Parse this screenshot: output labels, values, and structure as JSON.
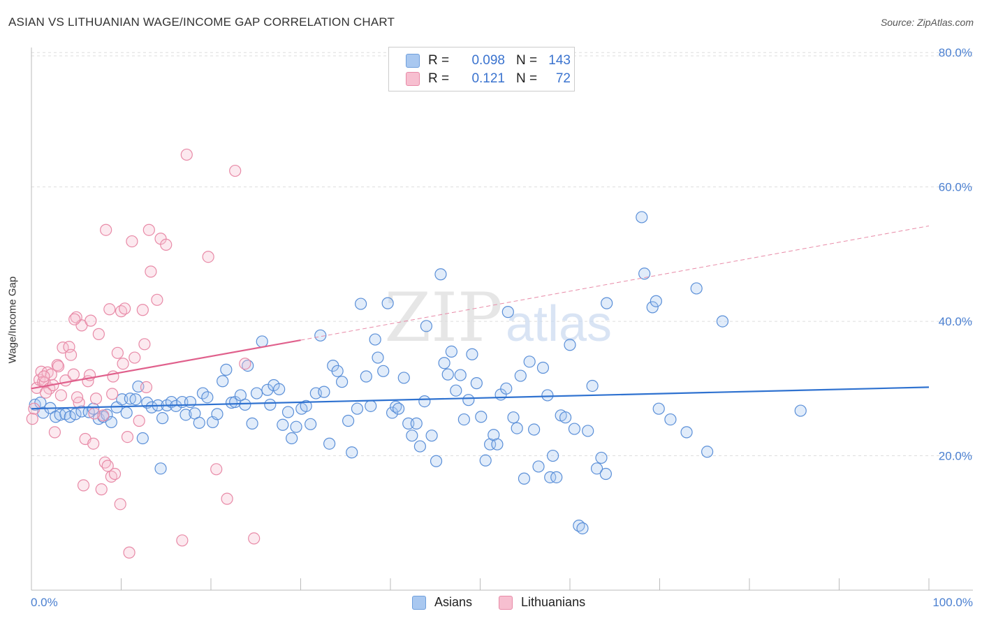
{
  "title": "ASIAN VS LITHUANIAN WAGE/INCOME GAP CORRELATION CHART",
  "source": "Source: ZipAtlas.com",
  "watermark": {
    "zip": "ZIP",
    "atlas": "atlas"
  },
  "legend": {
    "rows": [
      {
        "r_label": "R =",
        "r_value": "0.098",
        "n_label": "N =",
        "n_value": "143",
        "color": "#a9c8f0",
        "stroke": "#6f9fdc"
      },
      {
        "r_label": "R =",
        "r_value": "0.121",
        "n_label": "N =",
        "n_value": "72",
        "color": "#f7bfd0",
        "stroke": "#e88aa7"
      }
    ]
  },
  "bottom_legend": [
    {
      "label": "Asians",
      "color": "#a9c8f0",
      "stroke": "#6f9fdc"
    },
    {
      "label": "Lithuanians",
      "color": "#f7bfd0",
      "stroke": "#e88aa7"
    }
  ],
  "chart_data": {
    "type": "scatter",
    "title": "ASIAN VS LITHUANIAN WAGE/INCOME GAP CORRELATION CHART",
    "xlabel": "",
    "ylabel": "Wage/Income Gap",
    "xlim": [
      0,
      100
    ],
    "ylim": [
      0,
      80
    ],
    "x_tick_labels": [
      "0.0%",
      "100.0%"
    ],
    "y_ticks": [
      20,
      40,
      60,
      80
    ],
    "y_tick_labels": [
      "20.0%",
      "40.0%",
      "60.0%",
      "80.0%"
    ],
    "grid": true,
    "legend_position": "top-center",
    "series": [
      {
        "name": "Asians",
        "color": "#4a86d8",
        "trend": {
          "x": [
            0,
            100
          ],
          "y": [
            27.0,
            30.2
          ]
        },
        "points": [
          [
            0.4,
            27.6
          ],
          [
            1.0,
            27.9
          ],
          [
            1.3,
            26.4
          ],
          [
            2.1,
            27.1
          ],
          [
            2.7,
            25.8
          ],
          [
            3.2,
            26.1
          ],
          [
            3.8,
            26.2
          ],
          [
            4.3,
            25.8
          ],
          [
            4.9,
            26.2
          ],
          [
            5.6,
            26.6
          ],
          [
            6.4,
            26.5
          ],
          [
            6.9,
            27.0
          ],
          [
            7.5,
            25.5
          ],
          [
            8.0,
            25.8
          ],
          [
            8.4,
            26.1
          ],
          [
            8.9,
            25.0
          ],
          [
            9.5,
            27.2
          ],
          [
            10.1,
            28.4
          ],
          [
            10.6,
            26.4
          ],
          [
            11.0,
            28.5
          ],
          [
            11.6,
            28.4
          ],
          [
            11.9,
            30.3
          ],
          [
            12.4,
            22.6
          ],
          [
            12.9,
            27.9
          ],
          [
            13.4,
            27.2
          ],
          [
            14.1,
            27.5
          ],
          [
            14.6,
            25.6
          ],
          [
            15.1,
            27.5
          ],
          [
            14.4,
            18.1
          ],
          [
            15.6,
            28.0
          ],
          [
            16.1,
            27.4
          ],
          [
            16.8,
            28.0
          ],
          [
            17.2,
            26.1
          ],
          [
            17.7,
            28.0
          ],
          [
            18.2,
            26.3
          ],
          [
            18.7,
            24.9
          ],
          [
            19.1,
            29.3
          ],
          [
            19.6,
            28.7
          ],
          [
            20.2,
            25.0
          ],
          [
            20.7,
            26.2
          ],
          [
            21.3,
            31.1
          ],
          [
            21.7,
            32.8
          ],
          [
            22.3,
            27.9
          ],
          [
            22.7,
            28.0
          ],
          [
            23.3,
            29.0
          ],
          [
            23.8,
            27.6
          ],
          [
            24.1,
            33.4
          ],
          [
            24.6,
            24.8
          ],
          [
            25.1,
            29.3
          ],
          [
            25.7,
            37.0
          ],
          [
            26.3,
            29.8
          ],
          [
            26.6,
            27.6
          ],
          [
            27.0,
            30.5
          ],
          [
            27.6,
            29.9
          ],
          [
            28.0,
            24.6
          ],
          [
            28.6,
            26.5
          ],
          [
            29.0,
            22.6
          ],
          [
            29.5,
            24.3
          ],
          [
            30.1,
            27.0
          ],
          [
            30.6,
            27.4
          ],
          [
            31.1,
            24.7
          ],
          [
            31.7,
            29.3
          ],
          [
            32.2,
            37.9
          ],
          [
            32.6,
            29.5
          ],
          [
            33.2,
            21.8
          ],
          [
            33.6,
            33.4
          ],
          [
            34.1,
            32.6
          ],
          [
            34.6,
            31.0
          ],
          [
            35.3,
            25.2
          ],
          [
            35.7,
            20.5
          ],
          [
            36.3,
            27.0
          ],
          [
            36.7,
            42.6
          ],
          [
            37.3,
            31.8
          ],
          [
            37.8,
            27.4
          ],
          [
            38.3,
            37.3
          ],
          [
            38.6,
            34.6
          ],
          [
            39.2,
            32.6
          ],
          [
            39.7,
            42.7
          ],
          [
            40.2,
            26.4
          ],
          [
            40.6,
            27.3
          ],
          [
            40.9,
            27.0
          ],
          [
            41.5,
            31.6
          ],
          [
            42.0,
            24.8
          ],
          [
            42.4,
            23.0
          ],
          [
            42.9,
            24.8
          ],
          [
            43.3,
            21.4
          ],
          [
            43.8,
            28.1
          ],
          [
            44.0,
            39.3
          ],
          [
            44.6,
            23.0
          ],
          [
            45.1,
            19.2
          ],
          [
            45.6,
            47.0
          ],
          [
            46.0,
            33.8
          ],
          [
            46.4,
            32.1
          ],
          [
            46.8,
            35.5
          ],
          [
            47.3,
            29.7
          ],
          [
            47.8,
            32.0
          ],
          [
            48.2,
            25.4
          ],
          [
            48.7,
            28.3
          ],
          [
            49.1,
            35.1
          ],
          [
            49.6,
            30.8
          ],
          [
            50.1,
            25.8
          ],
          [
            50.6,
            19.3
          ],
          [
            51.1,
            21.7
          ],
          [
            51.5,
            23.1
          ],
          [
            51.9,
            21.7
          ],
          [
            52.3,
            29.1
          ],
          [
            52.9,
            30.0
          ],
          [
            53.1,
            41.4
          ],
          [
            53.7,
            25.7
          ],
          [
            54.1,
            24.1
          ],
          [
            54.5,
            31.9
          ],
          [
            54.9,
            16.6
          ],
          [
            55.5,
            34.0
          ],
          [
            56.0,
            23.9
          ],
          [
            56.5,
            18.4
          ],
          [
            57.0,
            33.1
          ],
          [
            57.5,
            29.0
          ],
          [
            57.8,
            16.8
          ],
          [
            58.1,
            20.0
          ],
          [
            58.5,
            16.8
          ],
          [
            59.0,
            26.0
          ],
          [
            59.5,
            25.7
          ],
          [
            60.0,
            36.5
          ],
          [
            60.5,
            24.0
          ],
          [
            61.0,
            9.6
          ],
          [
            61.4,
            9.2
          ],
          [
            62.0,
            23.7
          ],
          [
            62.5,
            30.4
          ],
          [
            63.0,
            18.1
          ],
          [
            63.5,
            19.7
          ],
          [
            64.0,
            17.3
          ],
          [
            64.1,
            42.7
          ],
          [
            68.0,
            55.5
          ],
          [
            68.3,
            47.1
          ],
          [
            69.2,
            42.1
          ],
          [
            69.6,
            43.0
          ],
          [
            69.9,
            27.0
          ],
          [
            71.2,
            25.4
          ],
          [
            73.0,
            23.5
          ],
          [
            74.1,
            44.9
          ],
          [
            75.3,
            20.6
          ],
          [
            77.0,
            40.0
          ],
          [
            85.7,
            26.7
          ]
        ]
      },
      {
        "name": "Lithuanians",
        "color": "#e27099",
        "trend": {
          "x": [
            0,
            30
          ],
          "y": [
            30.0,
            37.2
          ]
        },
        "trend_extension": {
          "x": [
            30,
            100
          ],
          "y": [
            37.2,
            54.2
          ]
        },
        "points": [
          [
            0.3,
            27.0
          ],
          [
            0.6,
            30.1
          ],
          [
            0.9,
            31.3
          ],
          [
            1.1,
            32.5
          ],
          [
            1.3,
            31.0
          ],
          [
            1.5,
            30.9
          ],
          [
            1.8,
            32.4
          ],
          [
            2.0,
            30.0
          ],
          [
            2.4,
            30.5
          ],
          [
            2.6,
            23.5
          ],
          [
            2.9,
            33.5
          ],
          [
            3.3,
            29.0
          ],
          [
            3.5,
            36.1
          ],
          [
            3.8,
            31.2
          ],
          [
            4.2,
            36.2
          ],
          [
            4.4,
            35.0
          ],
          [
            4.7,
            32.1
          ],
          [
            5.0,
            40.6
          ],
          [
            5.3,
            27.9
          ],
          [
            5.6,
            39.4
          ],
          [
            5.8,
            15.6
          ],
          [
            6.0,
            22.5
          ],
          [
            6.3,
            31.1
          ],
          [
            6.6,
            40.1
          ],
          [
            6.9,
            21.8
          ],
          [
            7.2,
            28.5
          ],
          [
            7.5,
            38.1
          ],
          [
            7.8,
            15.0
          ],
          [
            8.0,
            26.0
          ],
          [
            8.2,
            19.0
          ],
          [
            8.5,
            18.5
          ],
          [
            8.7,
            41.8
          ],
          [
            8.9,
            16.9
          ],
          [
            9.1,
            31.8
          ],
          [
            9.3,
            17.3
          ],
          [
            9.6,
            35.3
          ],
          [
            9.9,
            12.8
          ],
          [
            10.0,
            41.5
          ],
          [
            10.2,
            33.7
          ],
          [
            10.4,
            41.9
          ],
          [
            10.7,
            22.8
          ],
          [
            10.9,
            5.6
          ],
          [
            11.2,
            51.9
          ],
          [
            11.5,
            34.6
          ],
          [
            12.0,
            25.2
          ],
          [
            12.4,
            41.7
          ],
          [
            12.6,
            36.6
          ],
          [
            13.1,
            53.6
          ],
          [
            13.3,
            47.4
          ],
          [
            14.0,
            43.2
          ],
          [
            14.4,
            52.3
          ],
          [
            15.0,
            51.4
          ],
          [
            16.8,
            7.4
          ],
          [
            17.3,
            64.8
          ],
          [
            19.7,
            49.6
          ],
          [
            20.6,
            18.0
          ],
          [
            21.8,
            13.6
          ],
          [
            22.7,
            62.4
          ],
          [
            23.8,
            33.7
          ],
          [
            24.8,
            7.7
          ],
          [
            8.3,
            53.6
          ],
          [
            4.8,
            40.3
          ],
          [
            2.2,
            32.1
          ],
          [
            1.6,
            29.4
          ],
          [
            0.1,
            25.5
          ],
          [
            3.0,
            33.3
          ],
          [
            6.5,
            32.0
          ],
          [
            7.0,
            26.3
          ],
          [
            9.0,
            29.2
          ],
          [
            12.8,
            30.2
          ],
          [
            5.1,
            28.7
          ],
          [
            1.4,
            31.8
          ]
        ]
      }
    ]
  }
}
